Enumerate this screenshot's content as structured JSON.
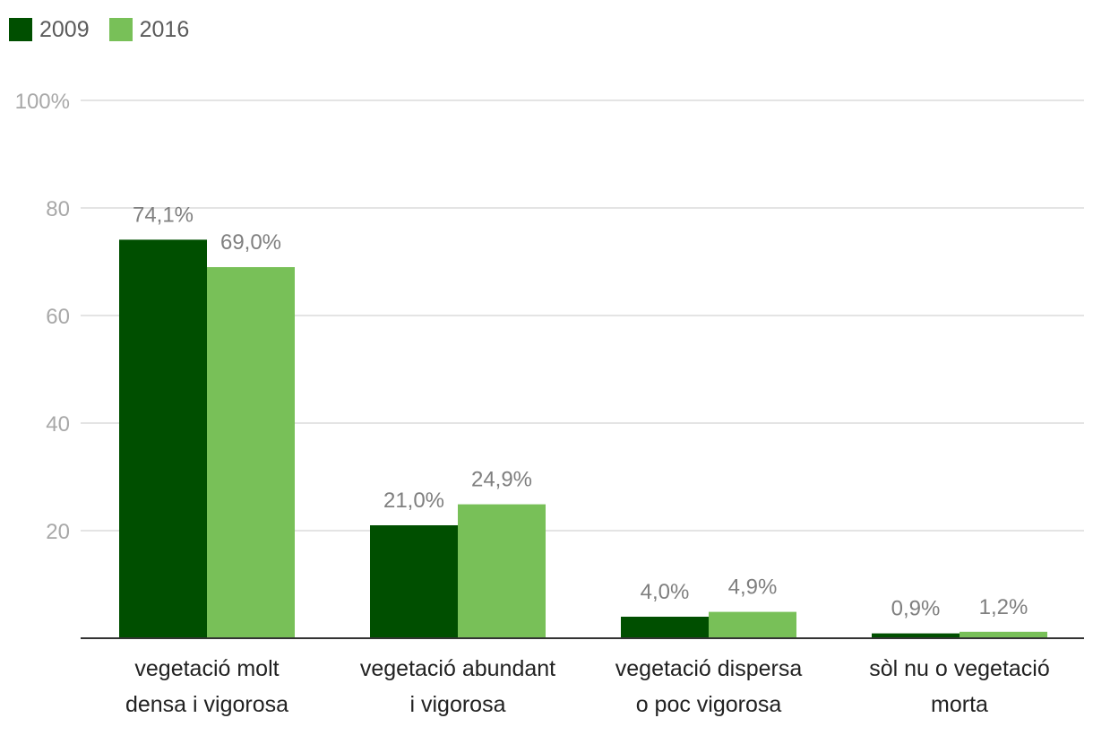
{
  "chart_data": {
    "type": "bar",
    "categories": [
      [
        "vegetació molt",
        "densa i vigorosa"
      ],
      [
        "vegetació abundant",
        "i vigorosa"
      ],
      [
        "vegetació dispersa",
        "o poc vigorosa"
      ],
      [
        "sòl nu o vegetació",
        "morta"
      ]
    ],
    "series": [
      {
        "name": "2009",
        "color": "#004f00",
        "values": [
          74.1,
          21.0,
          4.0,
          0.9
        ],
        "labels": [
          "74,1%",
          "21,0%",
          "4,0%",
          "0,9%"
        ]
      },
      {
        "name": "2016",
        "color": "#78c058",
        "values": [
          69.0,
          24.9,
          4.9,
          1.2
        ],
        "labels": [
          "69,0%",
          "24,9%",
          "4,9%",
          "1,2%"
        ]
      }
    ],
    "yticks": [
      {
        "value": 20,
        "label": "20"
      },
      {
        "value": 40,
        "label": "40"
      },
      {
        "value": 60,
        "label": "60"
      },
      {
        "value": 80,
        "label": "80"
      },
      {
        "value": 100,
        "label": "100%"
      }
    ],
    "ylim": [
      0,
      100
    ],
    "grid": true,
    "legend_position": "top-left",
    "title": "",
    "xlabel": "",
    "ylabel": ""
  }
}
